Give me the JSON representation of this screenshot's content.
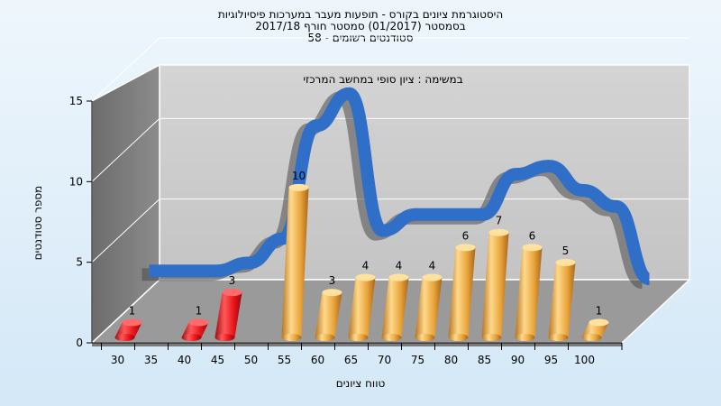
{
  "titles": {
    "line1": "היסטוגרמת ציונים בקורס - תופעות מעבר במערכות פיסיולוגיות",
    "line2": "בסמסטר  (01/2017)  סמסטר חורף  2017/18",
    "line3": "סטודנטים רשומים - 58"
  },
  "chart_data": {
    "type": "bar",
    "title": "היסטוגרמת ציונים בקורס - תופעות מעבר במערכות פיסיולוגיות",
    "annotation": "במשימה : ציון סופי במחשב המרכזי",
    "xlabel": "טווח ציונים",
    "ylabel": "מספר סטודנטים",
    "ylim": [
      0,
      15
    ],
    "yticks": [
      "0",
      "5",
      "10",
      "15"
    ],
    "xticks": [
      "30",
      "35",
      "40",
      "45",
      "50",
      "55",
      "60",
      "65",
      "70",
      "75",
      "80",
      "85",
      "90",
      "95",
      "100"
    ],
    "bars": [
      {
        "x": 30,
        "value": 1,
        "label": "1",
        "status": "fail"
      },
      {
        "x": 40,
        "value": 1,
        "label": "1",
        "status": "fail"
      },
      {
        "x": 45,
        "value": 3,
        "label": "3",
        "status": "fail"
      },
      {
        "x": 55,
        "value": 10,
        "label": "10",
        "status": "pass"
      },
      {
        "x": 60,
        "value": 3,
        "label": "3",
        "status": "pass"
      },
      {
        "x": 65,
        "value": 4,
        "label": "4",
        "status": "pass"
      },
      {
        "x": 70,
        "value": 4,
        "label": "4",
        "status": "pass"
      },
      {
        "x": 75,
        "value": 4,
        "label": "4",
        "status": "pass"
      },
      {
        "x": 80,
        "value": 6,
        "label": "6",
        "status": "pass"
      },
      {
        "x": 85,
        "value": 7,
        "label": "7",
        "status": "pass"
      },
      {
        "x": 90,
        "value": 6,
        "label": "6",
        "status": "pass"
      },
      {
        "x": 95,
        "value": 5,
        "label": "5",
        "status": "pass"
      },
      {
        "x": 100,
        "value": 1,
        "label": "1",
        "status": "pass"
      }
    ],
    "trend_curve": [
      {
        "x": 30,
        "y": 2
      },
      {
        "x": 40,
        "y": 2
      },
      {
        "x": 45,
        "y": 2.5
      },
      {
        "x": 50,
        "y": 4
      },
      {
        "x": 55,
        "y": 11
      },
      {
        "x": 60,
        "y": 13
      },
      {
        "x": 65,
        "y": 4.5
      },
      {
        "x": 70,
        "y": 5.5
      },
      {
        "x": 75,
        "y": 5.5
      },
      {
        "x": 80,
        "y": 5.5
      },
      {
        "x": 85,
        "y": 8
      },
      {
        "x": 90,
        "y": 8.5
      },
      {
        "x": 95,
        "y": 7
      },
      {
        "x": 100,
        "y": 6
      },
      {
        "x": 105,
        "y": 1.5
      }
    ],
    "colors": {
      "fail_bar": "#e8141a",
      "pass_bar": "#e9a43a",
      "trend": "#2f6fc7",
      "back_wall": "#cfcfcf",
      "side_wall": "#7d7d7d",
      "floor": "#9a9a9a"
    },
    "grid": true
  }
}
